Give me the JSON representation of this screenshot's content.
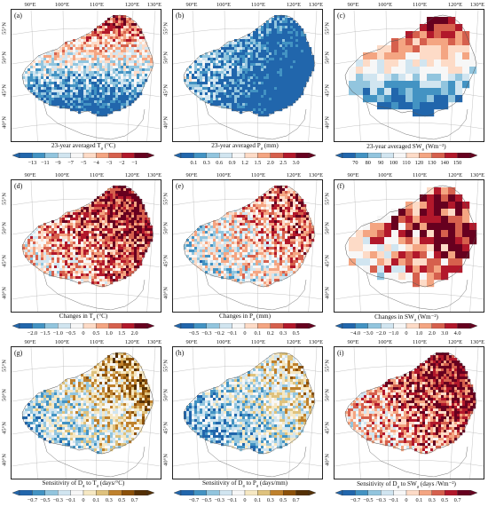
{
  "lon_labels": [
    "90°E",
    "100°E",
    "110°E",
    "120°E",
    "130°E"
  ],
  "lat_labels": [
    "55°N",
    "50°N",
    "45°N",
    "40°N"
  ],
  "panels": [
    {
      "letter": "(a)",
      "caption": "23-year averaged T",
      "sub": "a",
      "unit": " (°C)",
      "scheme": "div_r",
      "ticks": [
        "−13",
        "−11",
        "−9",
        "−7",
        "−5",
        "−4",
        "−3",
        "−2",
        "−1"
      ],
      "grid": "fine",
      "bias": 0.55
    },
    {
      "letter": "(b)",
      "caption": "23-year averaged P",
      "sub": "a",
      "unit": " (mm)",
      "scheme": "div_r",
      "ticks": [
        "0.1",
        "0.3",
        "0.6",
        "0.9",
        "1.2",
        "1.5",
        "2.0",
        "2.5",
        "3.0"
      ],
      "grid": "fine",
      "bias": 0.3
    },
    {
      "letter": "(c)",
      "caption": "23-year averaged SW",
      "sub": "a",
      "unit": " (Wm⁻²)",
      "scheme": "div_r",
      "ticks": [
        "70",
        "80",
        "90",
        "100",
        "110",
        "120",
        "130",
        "140",
        "150"
      ],
      "grid": "coarse",
      "bias": 0.35
    },
    {
      "letter": "(d)",
      "caption": "Changes in T",
      "sub": "a",
      "unit": " (°C)",
      "scheme": "div",
      "ticks": [
        "−2.0",
        "−1.5",
        "−1.0",
        "−0.5",
        "0",
        "0.5",
        "1.0",
        "1.5",
        "2.0"
      ],
      "grid": "fine",
      "bias": 0.72
    },
    {
      "letter": "(e)",
      "caption": "Changes in P",
      "sub": "a",
      "unit": " (mm)",
      "scheme": "div",
      "ticks": [
        "−0.5",
        "−0.3",
        "−0.2",
        "−0.1",
        "0",
        "0.1",
        "0.2",
        "0.3",
        "0.5"
      ],
      "grid": "fine",
      "bias": 0.55
    },
    {
      "letter": "(f)",
      "caption": "Changes in SW",
      "sub": "a",
      "unit": " (Wm⁻²)",
      "scheme": "div",
      "ticks": [
        "−4.0",
        "−3.0",
        "−2.0",
        "−1.0",
        "0",
        "1.0",
        "2.0",
        "3.0",
        "4.0"
      ],
      "grid": "coarse",
      "bias": 0.7
    },
    {
      "letter": "(g)",
      "caption": "Sensitivity of D",
      "sub": "a",
      "mid": " to T",
      "sub2": "a",
      "unit": " (days/°C)",
      "scheme": "brbg",
      "ticks": [
        "−0.7",
        "−0.5",
        "−0.3",
        "−0.1",
        "0",
        "0.1",
        "0.3",
        "0.5",
        "0.7"
      ],
      "grid": "fine",
      "bias": 0.5
    },
    {
      "letter": "(h)",
      "caption": "Sensitivity of D",
      "sub": "a",
      "mid": " to P",
      "sub2": "a",
      "unit": " (days/mm)",
      "scheme": "brbg",
      "ticks": [
        "−0.7",
        "−0.5",
        "−0.3",
        "−0.1",
        "0",
        "0.1",
        "0.3",
        "0.5",
        "0.7"
      ],
      "grid": "fine",
      "bias": 0.38
    },
    {
      "letter": "(i)",
      "caption": "Sensitivity of D",
      "sub": "a",
      "mid": " to SW",
      "sub2": "a",
      "unit": " (days /Wm⁻²)",
      "scheme": "div",
      "ticks": [
        "−0.7",
        "−0.5",
        "−0.3",
        "−0.1",
        "0",
        "0.1",
        "0.3",
        "0.5",
        "0.7"
      ],
      "grid": "fine",
      "bias": 0.72
    }
  ],
  "colors": {
    "div_r": [
      "#2166ac",
      "#4393c3",
      "#92c5de",
      "#d1e5f0",
      "#f7f7f7",
      "#fddbc7",
      "#f4a582",
      "#d6604d",
      "#b2182b",
      "#67001f"
    ],
    "div": [
      "#2166ac",
      "#4393c3",
      "#92c5de",
      "#d1e5f0",
      "#f7f7f7",
      "#fddbc7",
      "#f4a582",
      "#d6604d",
      "#b2182b",
      "#67001f"
    ],
    "brbg": [
      "#2166ac",
      "#4393c3",
      "#92c5de",
      "#d1e5f0",
      "#f7f7f7",
      "#f6e8c3",
      "#dfc27d",
      "#bf812d",
      "#8c510a",
      "#543005"
    ]
  }
}
